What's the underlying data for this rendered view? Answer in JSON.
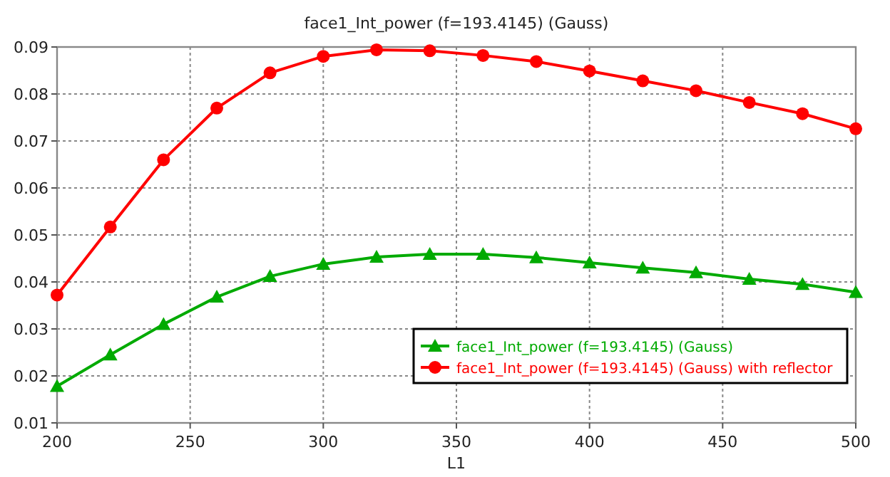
{
  "chart_data": {
    "type": "line",
    "title": "face1_Int_power (f=193.4145) (Gauss)",
    "xlabel": "L1",
    "x": [
      200,
      220,
      240,
      260,
      280,
      300,
      320,
      340,
      360,
      380,
      400,
      420,
      440,
      460,
      480,
      500
    ],
    "series": [
      {
        "name": "face1_Int_power (f=193.4145) (Gauss)",
        "color": "#00aa00",
        "marker": "triangle",
        "values": [
          0.0178,
          0.0245,
          0.031,
          0.0368,
          0.0412,
          0.0438,
          0.0453,
          0.0459,
          0.0459,
          0.0452,
          0.0441,
          0.043,
          0.042,
          0.0406,
          0.0395,
          0.0378
        ]
      },
      {
        "name": "face1_Int_power (f=193.4145) (Gauss) with reflector",
        "color": "#ff0000",
        "marker": "circle",
        "values": [
          0.0372,
          0.0517,
          0.066,
          0.077,
          0.0845,
          0.088,
          0.0894,
          0.0892,
          0.0882,
          0.0869,
          0.0849,
          0.0828,
          0.0807,
          0.0782,
          0.0758,
          0.0726
        ]
      }
    ],
    "xlim": [
      200,
      500
    ],
    "xticks": [
      200,
      250,
      300,
      350,
      400,
      450,
      500
    ],
    "ylim": [
      0.01,
      0.09
    ],
    "yticks": [
      0.01,
      0.02,
      0.03,
      0.04,
      0.05,
      0.06,
      0.07,
      0.08,
      0.09
    ],
    "grid": true,
    "legend": "bottom right",
    "line_style": "solid"
  }
}
